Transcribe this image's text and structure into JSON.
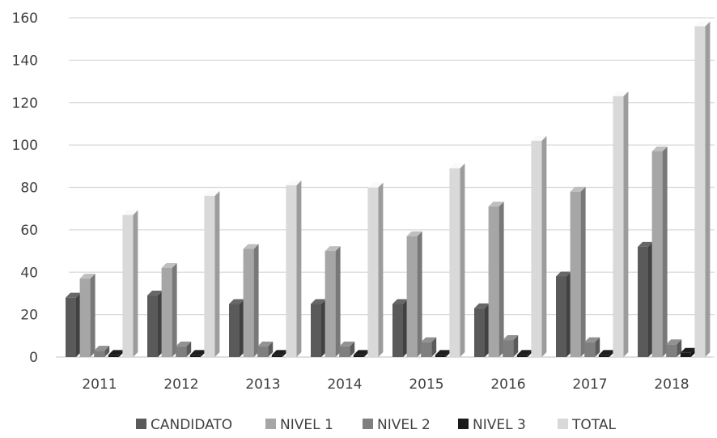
{
  "chart_data": {
    "type": "bar",
    "categories": [
      "2011",
      "2012",
      "2013",
      "2014",
      "2015",
      "2016",
      "2017",
      "2018"
    ],
    "ylim": [
      0,
      160
    ],
    "yticks": [
      0,
      20,
      40,
      60,
      80,
      100,
      120,
      140,
      160
    ],
    "grid": true,
    "legend_position": "bottom",
    "series": [
      {
        "name": "CANDIDATO",
        "color": "#5a5a5a",
        "values": [
          28,
          29,
          25,
          25,
          25,
          23,
          38,
          52
        ]
      },
      {
        "name": "NIVEL 1",
        "color": "#a6a6a6",
        "values": [
          37,
          42,
          51,
          50,
          57,
          71,
          78,
          97
        ]
      },
      {
        "name": "NIVEL 2",
        "color": "#7f7f7f",
        "values": [
          3,
          5,
          5,
          5,
          7,
          8,
          7,
          6
        ]
      },
      {
        "name": "NIVEL 3",
        "color": "#1a1a1a",
        "values": [
          1,
          1,
          1,
          1,
          1,
          1,
          1,
          2
        ]
      },
      {
        "name": "TOTAL",
        "color": "#d9d9d9",
        "values": [
          67,
          76,
          81,
          80,
          89,
          102,
          123,
          156
        ]
      }
    ]
  }
}
